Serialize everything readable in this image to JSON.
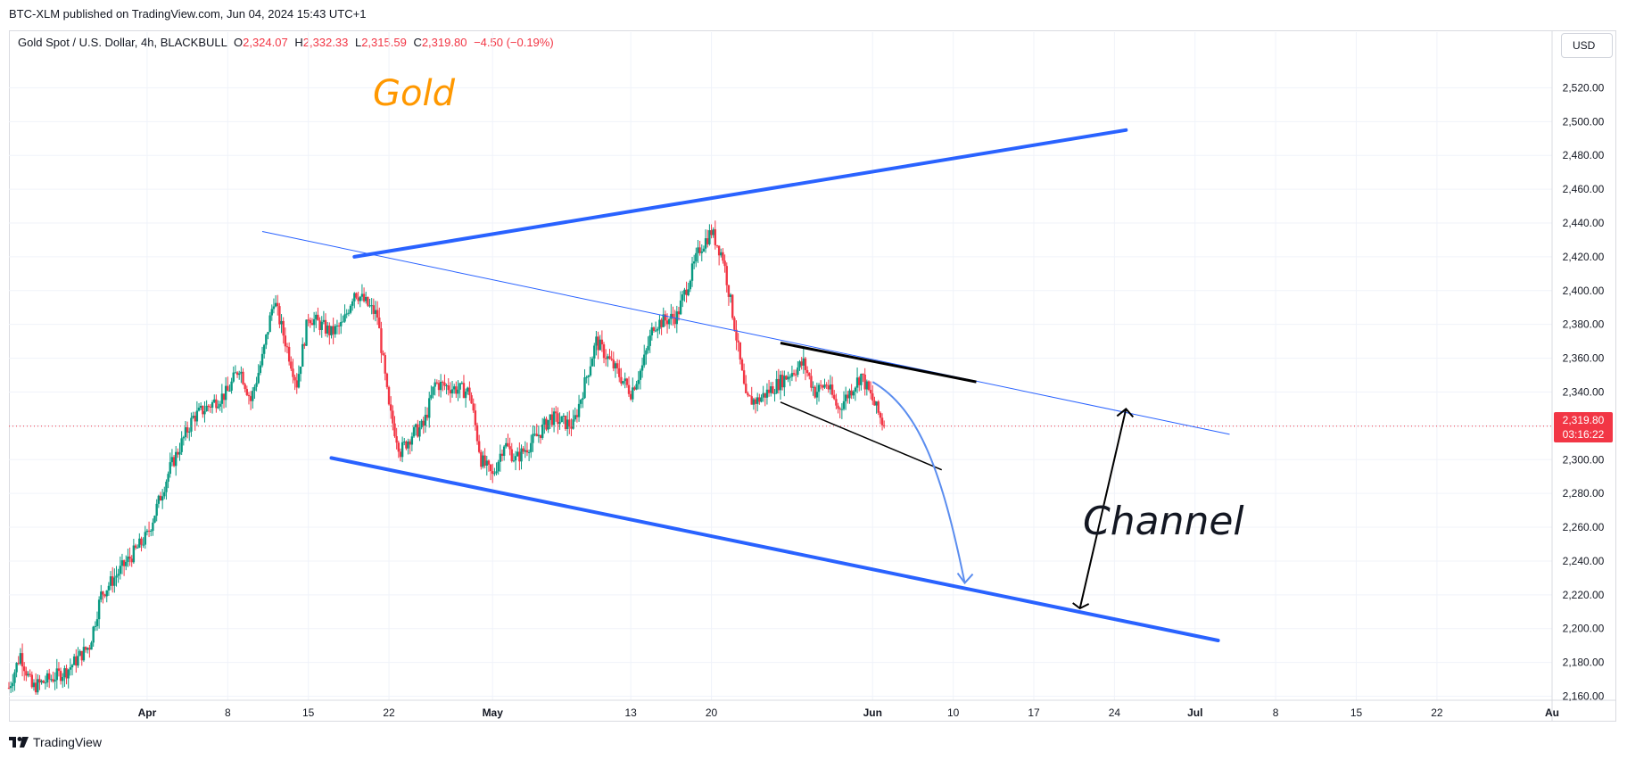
{
  "header": {
    "published": "BTC-XLM published on TradingView.com, Jun 04, 2024 15:43 UTC+1",
    "symbol": "Gold Spot / U.S. Dollar, 4h, BLACKBULL",
    "o_label": "O",
    "o_value": "2,324.07",
    "h_label": "H",
    "h_value": "2,332.33",
    "l_label": "L",
    "l_value": "2,315.59",
    "c_label": "C",
    "c_value": "2,319.80",
    "change": "−4.50 (−0.19%)"
  },
  "currency_button": "USD",
  "price_tag": {
    "price": "2,319.80",
    "countdown": "03:16:22"
  },
  "footer": {
    "brand": "TradingView"
  },
  "annotations": {
    "title": "Gold",
    "channel": "Channel"
  },
  "colors": {
    "up": "#089981",
    "down": "#f23645",
    "channel": "#2962ff",
    "title": "#ff9800",
    "thin_line": "#2962ff",
    "last_price": "#f23645"
  },
  "chart_data": {
    "type": "candlestick",
    "timeframe": "4h",
    "ylim": [
      2155,
      2535
    ],
    "y_ticks": [
      2160,
      2180,
      2200,
      2220,
      2240,
      2260,
      2280,
      2300,
      2320,
      2340,
      2360,
      2380,
      2400,
      2420,
      2440,
      2460,
      2480,
      2500,
      2520
    ],
    "y_tick_labels": [
      "2,160.00",
      "2,180.00",
      "2,200.00",
      "2,220.00",
      "2,240.00",
      "2,260.00",
      "2,280.00",
      "2,300.00",
      "2,320.00",
      "2,340.00",
      "2,360.00",
      "2,380.00",
      "2,400.00",
      "2,420.00",
      "2,440.00",
      "2,460.00",
      "2,480.00",
      "2,500.00",
      "2,520.00"
    ],
    "x_ticks": [
      {
        "label": "Apr",
        "date": "2024-04-01",
        "bold": true
      },
      {
        "label": "8",
        "date": "2024-04-08"
      },
      {
        "label": "15",
        "date": "2024-04-15"
      },
      {
        "label": "22",
        "date": "2024-04-22"
      },
      {
        "label": "May",
        "date": "2024-05-01",
        "bold": true
      },
      {
        "label": "13",
        "date": "2024-05-13"
      },
      {
        "label": "20",
        "date": "2024-05-20"
      },
      {
        "label": "Jun",
        "date": "2024-06-03",
        "bold": true
      },
      {
        "label": "10",
        "date": "2024-06-10"
      },
      {
        "label": "17",
        "date": "2024-06-17"
      },
      {
        "label": "24",
        "date": "2024-06-24"
      },
      {
        "label": "Jul",
        "date": "2024-07-01",
        "bold": true
      },
      {
        "label": "8",
        "date": "2024-07-08"
      },
      {
        "label": "15",
        "date": "2024-07-15"
      },
      {
        "label": "22",
        "date": "2024-07-22"
      },
      {
        "label": "Au",
        "date": "2024-08-01",
        "bold": true
      }
    ],
    "x_range": [
      "2024-03-20",
      "2024-08-01"
    ],
    "last_price": 2319.8,
    "anchors": [
      [
        "2024-03-20",
        2165
      ],
      [
        "2024-03-21",
        2185
      ],
      [
        "2024-03-22",
        2165
      ],
      [
        "2024-03-25",
        2175
      ],
      [
        "2024-03-27",
        2190
      ],
      [
        "2024-03-28",
        2220
      ],
      [
        "2024-04-01",
        2255
      ],
      [
        "2024-04-03",
        2295
      ],
      [
        "2024-04-05",
        2325
      ],
      [
        "2024-04-08",
        2340
      ],
      [
        "2024-04-09",
        2355
      ],
      [
        "2024-04-10",
        2335
      ],
      [
        "2024-04-11",
        2360
      ],
      [
        "2024-04-12",
        2395
      ],
      [
        "2024-04-14",
        2345
      ],
      [
        "2024-04-15",
        2385
      ],
      [
        "2024-04-17",
        2375
      ],
      [
        "2024-04-18",
        2380
      ],
      [
        "2024-04-19",
        2400
      ],
      [
        "2024-04-21",
        2385
      ],
      [
        "2024-04-22",
        2330
      ],
      [
        "2024-04-23",
        2305
      ],
      [
        "2024-04-24",
        2315
      ],
      [
        "2024-04-25",
        2320
      ],
      [
        "2024-04-26",
        2345
      ],
      [
        "2024-04-29",
        2340
      ],
      [
        "2024-04-30",
        2300
      ],
      [
        "2024-05-01",
        2290
      ],
      [
        "2024-05-02",
        2310
      ],
      [
        "2024-05-03",
        2300
      ],
      [
        "2024-05-05",
        2315
      ],
      [
        "2024-05-06",
        2325
      ],
      [
        "2024-05-08",
        2320
      ],
      [
        "2024-05-09",
        2345
      ],
      [
        "2024-05-10",
        2370
      ],
      [
        "2024-05-13",
        2340
      ],
      [
        "2024-05-14",
        2355
      ],
      [
        "2024-05-15",
        2380
      ],
      [
        "2024-05-17",
        2385
      ],
      [
        "2024-05-19",
        2425
      ],
      [
        "2024-05-20",
        2435
      ],
      [
        "2024-05-21",
        2420
      ],
      [
        "2024-05-22",
        2380
      ],
      [
        "2024-05-23",
        2335
      ],
      [
        "2024-05-24",
        2335
      ],
      [
        "2024-05-27",
        2352
      ],
      [
        "2024-05-28",
        2357
      ],
      [
        "2024-05-29",
        2340
      ],
      [
        "2024-05-30",
        2345
      ],
      [
        "2024-05-31",
        2330
      ],
      [
        "2024-06-02",
        2350
      ],
      [
        "2024-06-03",
        2335
      ],
      [
        "2024-06-04",
        2319.8
      ]
    ],
    "drawings": {
      "upper_channel": [
        [
          "2024-04-19",
          2420
        ],
        [
          "2024-06-25",
          2495
        ]
      ],
      "lower_channel": [
        [
          "2024-04-17",
          2301
        ],
        [
          "2024-07-03",
          2193
        ]
      ],
      "descending_line": [
        [
          "2024-04-11",
          2435
        ],
        [
          "2024-07-04",
          2315
        ]
      ],
      "wedge_upper": [
        [
          "2024-05-26",
          2369
        ],
        [
          "2024-06-12",
          2346
        ]
      ],
      "wedge_lower": [
        [
          "2024-05-26",
          2334
        ],
        [
          "2024-06-09",
          2294
        ]
      ],
      "projection_arc": [
        [
          "2024-06-03",
          2346
        ],
        [
          "2024-06-07",
          2330
        ],
        [
          "2024-06-09",
          2294
        ],
        [
          "2024-06-11",
          2227
        ]
      ],
      "range_arrow": [
        [
          "2024-06-21",
          2212
        ],
        [
          "2024-06-25",
          2330
        ]
      ]
    }
  }
}
